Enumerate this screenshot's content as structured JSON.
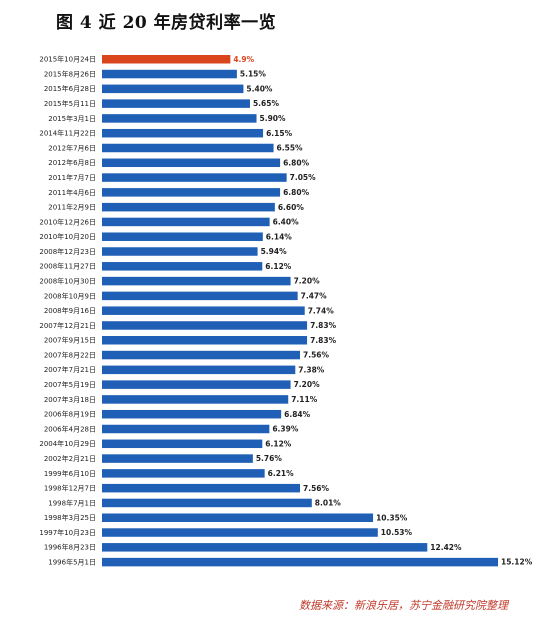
{
  "title": "图 4 近 20 年房贷利率一览",
  "source": "数据来源：新浪乐居，苏宁金融研究院整理",
  "colors": {
    "bar": "#1f5fb5",
    "highlight": "#d9461e",
    "highlight_text": "#d9461e",
    "text": "#222222"
  },
  "chart_data": {
    "type": "bar",
    "orientation": "horizontal",
    "categories": [
      "2015年10月24日",
      "2015年8月26日",
      "2015年6月28日",
      "2015年5月11日",
      "2015年3月1日",
      "2014年11月22日",
      "2012年7月6日",
      "2012年6月8日",
      "2011年7月7日",
      "2011年4月6日",
      "2011年2月9日",
      "2010年12月26日",
      "2010年10月20日",
      "2008年12月23日",
      "2008年11月27日",
      "2008年10月30日",
      "2008年10月9日",
      "2008年9月16日",
      "2007年12月21日",
      "2007年9月15日",
      "2007年8月22日",
      "2007年7月21日",
      "2007年5月19日",
      "2007年3月18日",
      "2006年8月19日",
      "2006年4月28日",
      "2004年10月29日",
      "2002年2月21日",
      "1999年6月10日",
      "1998年12月7日",
      "1998年7月1日",
      "1998年3月25日",
      "1997年10月23日",
      "1996年8月23日",
      "1996年5月1日"
    ],
    "value_labels": [
      "4.9%",
      "5.15%",
      "5.40%",
      "5.65%",
      "5.90%",
      "6.15%",
      "6.55%",
      "6.80%",
      "7.05%",
      "6.80%",
      "6.60%",
      "6.40%",
      "6.14%",
      "5.94%",
      "6.12%",
      "7.20%",
      "7.47%",
      "7.74%",
      "7.83%",
      "7.83%",
      "7.56%",
      "7.38%",
      "7.20%",
      "7.11%",
      "6.84%",
      "6.39%",
      "6.12%",
      "5.76%",
      "6.21%",
      "7.56%",
      "8.01%",
      "10.35%",
      "10.53%",
      "12.42%",
      "15.12%"
    ],
    "values": [
      4.9,
      5.15,
      5.4,
      5.65,
      5.9,
      6.15,
      6.55,
      6.8,
      7.05,
      6.8,
      6.6,
      6.4,
      6.14,
      5.94,
      6.12,
      7.2,
      7.47,
      7.74,
      7.83,
      7.83,
      7.56,
      7.38,
      7.2,
      7.11,
      6.84,
      6.39,
      6.12,
      5.76,
      6.21,
      7.56,
      8.01,
      10.35,
      10.53,
      12.42,
      15.12
    ],
    "highlight_index": 0,
    "xlim": [
      0,
      15.12
    ],
    "grid": false,
    "legend": "none"
  }
}
